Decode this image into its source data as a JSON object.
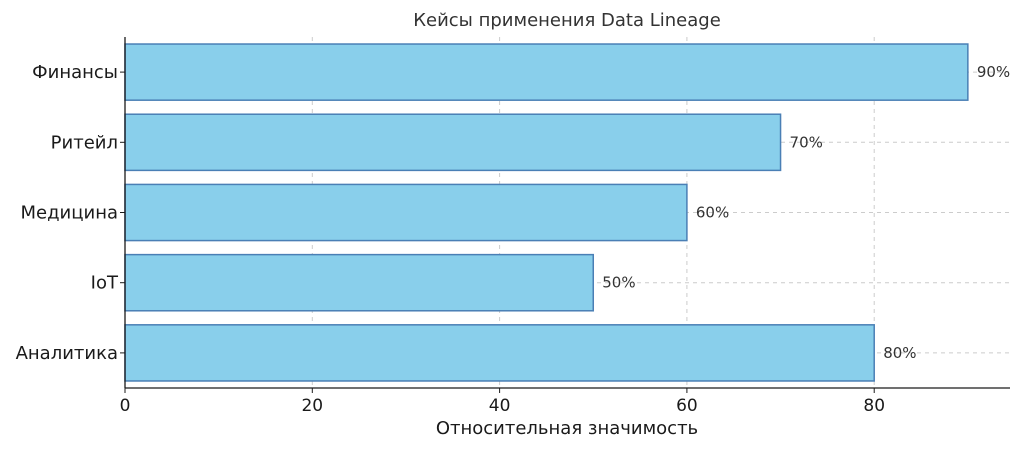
{
  "chart_data": {
    "type": "bar",
    "orientation": "horizontal",
    "title": "Кейсы применения Data Lineage",
    "xlabel": "Относительная значимость",
    "ylabel": "",
    "categories": [
      "Финансы",
      "Ритейл",
      "Медицина",
      "IoT",
      "Аналитика"
    ],
    "values": [
      90,
      70,
      60,
      50,
      80
    ],
    "value_labels": [
      "90%",
      "70%",
      "60%",
      "50%",
      "80%"
    ],
    "xlim": [
      0,
      94.5
    ],
    "xticks": [
      0,
      20,
      40,
      60,
      80
    ],
    "xtick_labels": [
      "0",
      "20",
      "40",
      "60",
      "80"
    ],
    "grid": true,
    "grid_style": "dashed",
    "colors": {
      "bar_fill": "#89CFEB",
      "bar_edge": "#4A7FB5",
      "grid": "#cccccc",
      "axis": "#1a1a1a"
    }
  }
}
